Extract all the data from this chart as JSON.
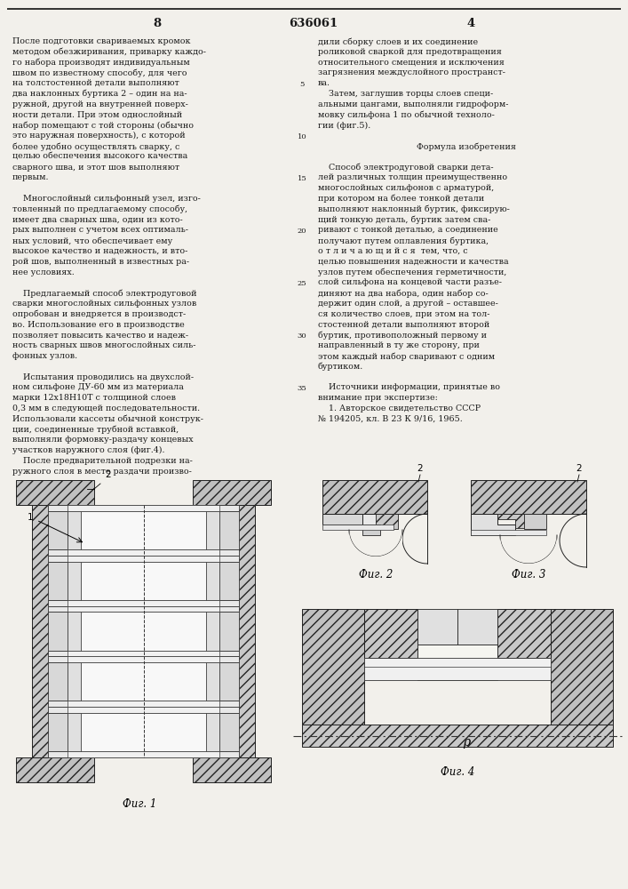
{
  "bg_color": "#f2f0eb",
  "text_color": "#1a1a1a",
  "page_num_left": "8",
  "page_num_center": "636061",
  "page_num_right": "4",
  "left_col": [
    "После подготовки свариваемых кромок",
    "методом обезжиривания, приварку каждо-",
    "го набора производят индивидуальным",
    "швом по известному способу, для чего",
    "на толстостенной детали выполняют",
    "два наклонных буртика 2 – один на на-",
    "ружной, другой на внутренней поверх-",
    "ности детали. При этом однослойный",
    "набор помещают с той стороны (обычно",
    "это наружная поверхность), с которой",
    "более удобно осуществлять сварку, с",
    "целью обеспечения высокого качества",
    "сварного шва, и этот шов выполняют",
    "первым.",
    "",
    "    Многослойный сильфонный узел, изго-",
    "товленный по предлагаемому способу,",
    "имеет два сварных шва, один из кото-",
    "рых выполнен с учетом всех оптималь-",
    "ных условий, что обеспечивает ему",
    "высокое качество и надежность, и вто-",
    "рой шов, выполненный в известных ра-",
    "нее условиях.",
    "",
    "    Предлагаемый способ электродуговой",
    "сварки многослойных сильфонных узлов",
    "опробован и внедряется в производст-",
    "во. Использование его в производстве",
    "позволяет повысить качество и надеж-",
    "ность сварных швов многослойных силь-",
    "фонных узлов.",
    "",
    "    Испытания проводились на двухслой-",
    "ном сильфоне ДУ-60 мм из материала",
    "марки 12х18Н10Т с толщиной слоев",
    "0,3 мм в следующей последовательности.",
    "Использовали кассеты обычной конструк-",
    "ции, соединенные трубной вставкой,",
    "выполняли формовку-раздачу концевых",
    "участков наружного слоя (фиг.4).",
    "    После предварительной подрезки на-",
    "ружного слоя в месте раздачи произво-"
  ],
  "right_col": [
    "дили сборку слоев и их соединение",
    "роликовой сваркой для предотвращения",
    "относительного смещения и исключения",
    "загрязнения междуслойного пространст-",
    "ва.",
    "    Затем, заглушив торцы слоев специ-",
    "альными цангами, выполняли гидроформ-",
    "мовку сильфона 1 по обычной техноло-",
    "гии (фиг.5).",
    "",
    "    Формула изобретения",
    "",
    "    Способ электродуговой сварки дета-",
    "лей различных толщин преимущественно",
    "многослойных сильфонов с арматурой,",
    "при котором на более тонкой детали",
    "выполняют наклонный буртик, фиксирую-",
    "щий тонкую деталь, буртик затем сва-",
    "ривают с тонкой деталью, а соединение",
    "получают путем оплавления буртика,",
    "о т л и ч а ю щ и й с я  тем, что, с",
    "целью повышения надежности и качества",
    "узлов путем обеспечения герметичности,",
    "слой сильфона на концевой части разъе-",
    "диняют на два набора, один набор со-",
    "держит один слой, а другой – оставшее-",
    "ся количество слоев, при этом на тол-",
    "стостенной детали выполняют второй",
    "буртик, противоположный первому и",
    "направленный в ту же сторону, при",
    "этом каждый набор сваривают с одним",
    "буртиком.",
    "",
    "    Источники информации, принятые во",
    "внимание при экспертизе:",
    "    1. Авторское свидетельство СССР",
    "№ 194205, кл. В 23 К 9/16, 1965."
  ],
  "line_numbers": [
    5,
    10,
    15,
    20,
    25,
    30,
    35
  ],
  "line_number_rows": [
    5,
    10,
    14,
    19,
    24,
    29,
    34
  ]
}
